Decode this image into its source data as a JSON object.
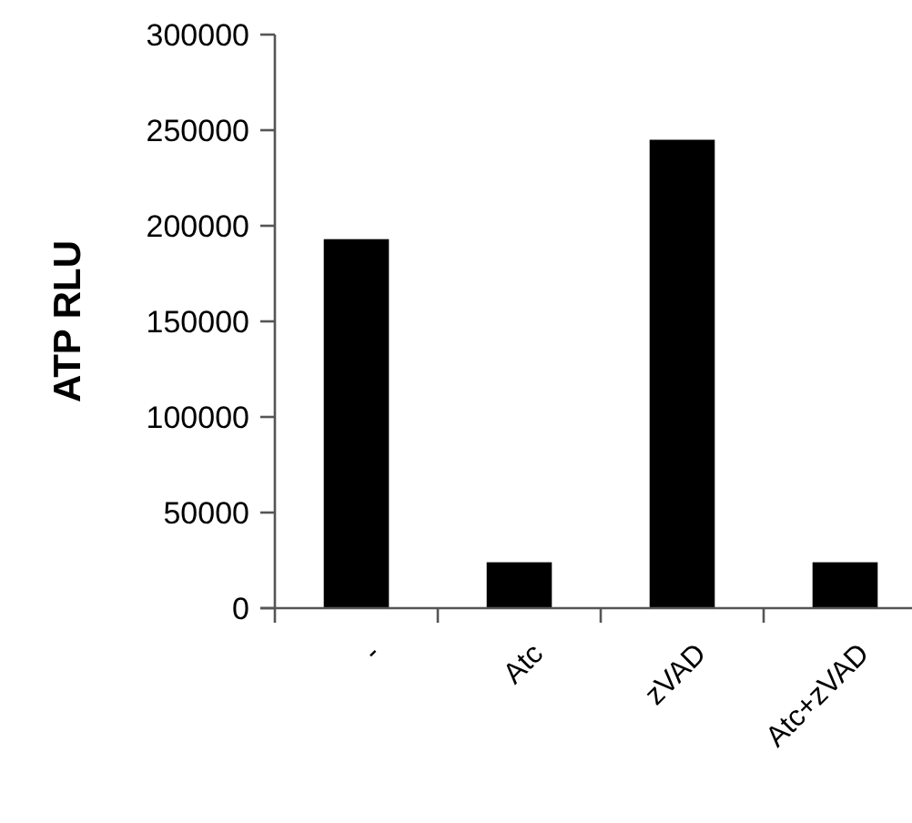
{
  "chart_data": {
    "type": "bar",
    "ylabel": "ATP RLU",
    "categories": [
      "-",
      "Atc",
      "zVAD",
      "Atc+zVAD"
    ],
    "values": [
      193000,
      24000,
      245000,
      24000
    ],
    "color": "#000000",
    "ylim": [
      0,
      300000
    ],
    "yticks": [
      0,
      50000,
      100000,
      150000,
      200000,
      250000,
      300000
    ],
    "grid": false
  }
}
